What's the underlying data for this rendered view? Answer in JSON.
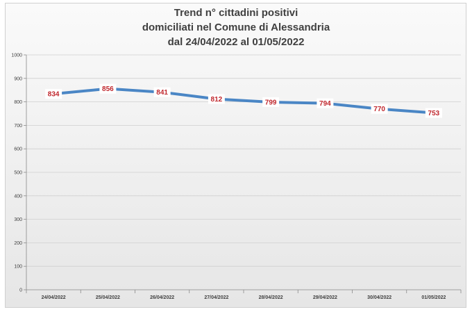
{
  "chart_data": {
    "type": "line",
    "title": [
      "Trend n° cittadini positivi",
      "domiciliati nel Comune di Alessandria",
      "dal 24/04/2022 al 01/05/2022"
    ],
    "xlabel": "",
    "ylabel": "",
    "categories": [
      "24/04/2022",
      "25/04/2022",
      "26/04/2022",
      "27/04/2022",
      "28/04/2022",
      "29/04/2022",
      "30/04/2022",
      "01/05/2022"
    ],
    "series": [
      {
        "values": [
          834,
          856,
          841,
          812,
          799,
          794,
          770,
          753
        ]
      }
    ],
    "ylim": [
      0,
      1000
    ],
    "yticks": [
      0,
      100,
      200,
      300,
      400,
      500,
      600,
      700,
      800,
      900,
      1000
    ],
    "grid": true,
    "legend": "none",
    "colors": {
      "line": "#4a86c5",
      "data_label": "#c0272d",
      "grid": "#cfcfcf",
      "text": "#404040"
    }
  }
}
